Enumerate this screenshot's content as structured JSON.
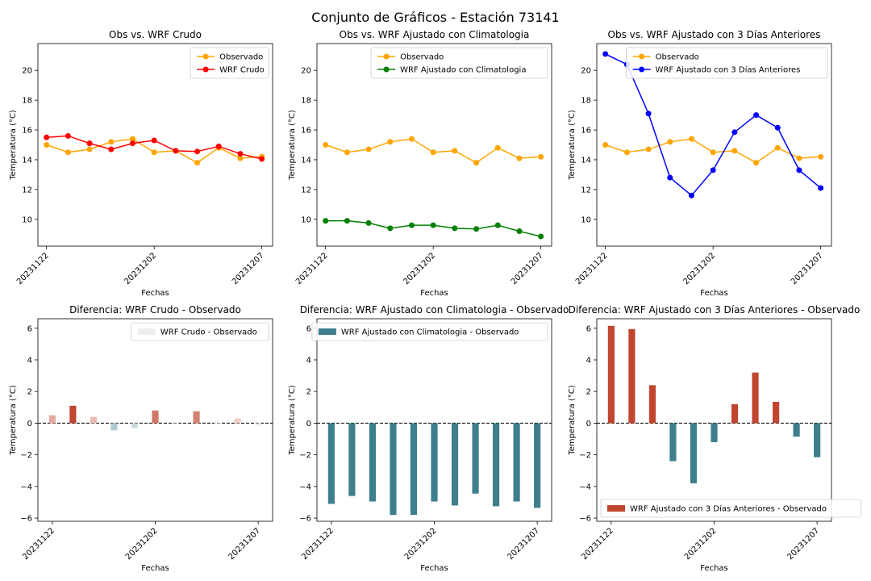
{
  "figure": {
    "title": "Conjunto de Gráficos - Estación 73141"
  },
  "colors": {
    "observado": "#FFA500",
    "wrf_crudo": "#FF0000",
    "wrf_clim": "#008000",
    "wrf_3d": "#0000FF",
    "diff_pos": "#C0462F",
    "diff_neg": "#3E7F8E",
    "zero_line": "#000000"
  },
  "chart_data": [
    {
      "type": "line",
      "title": "Obs vs. WRF Crudo",
      "xlabel": "Fechas",
      "ylabel": "Temperatura (°C)",
      "x": [
        0,
        1,
        2,
        3,
        4,
        5,
        6,
        7,
        8,
        9,
        10
      ],
      "xticks": [
        0,
        5,
        10
      ],
      "xtick_labels": [
        "20231122",
        "20231202",
        "20231207"
      ],
      "xlim": [
        -0.4,
        10.5
      ],
      "ylim": [
        8.2,
        21.8
      ],
      "yticks": [
        10,
        12,
        14,
        16,
        18,
        20
      ],
      "legend_position": "upper right",
      "series": [
        {
          "name": "Observado",
          "color_key": "observado",
          "values": [
            15.0,
            14.5,
            14.7,
            15.2,
            15.4,
            14.5,
            14.6,
            13.8,
            14.8,
            14.1,
            14.2
          ]
        },
        {
          "name": "WRF Crudo",
          "color_key": "wrf_crudo",
          "values": [
            15.5,
            15.6,
            15.1,
            14.7,
            15.1,
            15.3,
            14.6,
            14.55,
            14.9,
            14.4,
            14.05
          ]
        }
      ]
    },
    {
      "type": "line",
      "title": "Obs vs. WRF Ajustado con Climatologia",
      "xlabel": "Fechas",
      "ylabel": "Temperatura (°C)",
      "x": [
        0,
        1,
        2,
        3,
        4,
        5,
        6,
        7,
        8,
        9,
        10
      ],
      "xticks": [
        0,
        5,
        10
      ],
      "xtick_labels": [
        "20231122",
        "20231202",
        "20231207"
      ],
      "xlim": [
        -0.4,
        10.5
      ],
      "ylim": [
        8.2,
        21.8
      ],
      "yticks": [
        10,
        12,
        14,
        16,
        18,
        20
      ],
      "legend_position": "upper right",
      "series": [
        {
          "name": "Observado",
          "color_key": "observado",
          "values": [
            15.0,
            14.5,
            14.7,
            15.2,
            15.4,
            14.5,
            14.6,
            13.8,
            14.8,
            14.1,
            14.2
          ]
        },
        {
          "name": "WRF Ajustado con Climatologia",
          "color_key": "wrf_clim",
          "values": [
            9.9,
            9.9,
            9.75,
            9.4,
            9.6,
            9.6,
            9.4,
            9.35,
            9.6,
            9.2,
            8.85
          ]
        }
      ]
    },
    {
      "type": "line",
      "title": "Obs vs. WRF Ajustado con 3 Días Anteriores",
      "xlabel": "Fechas",
      "ylabel": "Temperatura (°C)",
      "x": [
        0,
        1,
        2,
        3,
        4,
        5,
        6,
        7,
        8,
        9,
        10
      ],
      "xticks": [
        0,
        5,
        10
      ],
      "xtick_labels": [
        "20231122",
        "20231202",
        "20231207"
      ],
      "xlim": [
        -0.4,
        10.5
      ],
      "ylim": [
        8.2,
        21.8
      ],
      "yticks": [
        10,
        12,
        14,
        16,
        18,
        20
      ],
      "legend_position": "upper right",
      "series": [
        {
          "name": "Observado",
          "color_key": "observado",
          "values": [
            15.0,
            14.5,
            14.7,
            15.2,
            15.4,
            14.5,
            14.6,
            13.8,
            14.8,
            14.1,
            14.2
          ]
        },
        {
          "name": "WRF Ajustado con 3 Días Anteriores",
          "color_key": "wrf_3d",
          "values": [
            21.1,
            20.4,
            17.1,
            12.8,
            11.6,
            13.3,
            15.85,
            17.0,
            16.15,
            13.3,
            12.1
          ]
        }
      ]
    },
    {
      "type": "bar",
      "title": "Diferencia: WRF Crudo - Observado",
      "xlabel": "Fechas",
      "ylabel": "Temperatura (°C)",
      "x": [
        0,
        1,
        2,
        3,
        4,
        5,
        6,
        7,
        8,
        9,
        10
      ],
      "xticks": [
        0,
        5,
        10
      ],
      "xtick_labels": [
        "20231122",
        "20231202",
        "20231207"
      ],
      "xlim": [
        -0.7,
        10.7
      ],
      "ylim": [
        -6.2,
        6.6
      ],
      "yticks": [
        -6,
        -4,
        -2,
        0,
        2,
        4,
        6
      ],
      "legend_position": "upper right",
      "bar_alpha_by_magnitude": true,
      "legend_color": "#EEEEEE",
      "series": [
        {
          "name": "WRF Crudo - Observado",
          "values": [
            0.5,
            1.1,
            0.4,
            -0.45,
            -0.3,
            0.8,
            0.0,
            0.75,
            0.1,
            0.3,
            -0.15
          ]
        }
      ]
    },
    {
      "type": "bar",
      "title": "Diferencia: WRF Ajustado con Climatologia - Observado",
      "xlabel": "Fechas",
      "ylabel": "Temperatura (°C)",
      "x": [
        0,
        1,
        2,
        3,
        4,
        5,
        6,
        7,
        8,
        9,
        10
      ],
      "xticks": [
        0,
        5,
        10
      ],
      "xtick_labels": [
        "20231122",
        "20231202",
        "20231207"
      ],
      "xlim": [
        -0.7,
        10.7
      ],
      "ylim": [
        -6.2,
        6.6
      ],
      "yticks": [
        -6,
        -4,
        -2,
        0,
        2,
        4,
        6
      ],
      "legend_position": "upper right",
      "bar_alpha_by_magnitude": false,
      "legend_color_key": "diff_neg",
      "series": [
        {
          "name": "WRF Ajustado con Climatologia - Observado",
          "values": [
            -5.1,
            -4.6,
            -4.95,
            -5.8,
            -5.8,
            -4.95,
            -5.2,
            -4.45,
            -5.25,
            -4.95,
            -5.35
          ]
        }
      ]
    },
    {
      "type": "bar",
      "title": "Diferencia: WRF Ajustado con 3 Días Anteriores - Observado",
      "xlabel": "Fechas",
      "ylabel": "Temperatura (°C)",
      "x": [
        0,
        1,
        2,
        3,
        4,
        5,
        6,
        7,
        8,
        9,
        10
      ],
      "xticks": [
        0,
        5,
        10
      ],
      "xtick_labels": [
        "20231122",
        "20231202",
        "20231207"
      ],
      "xlim": [
        -0.7,
        10.7
      ],
      "ylim": [
        -6.2,
        6.6
      ],
      "yticks": [
        -6,
        -4,
        -2,
        0,
        2,
        4,
        6
      ],
      "legend_position": "lower left",
      "bar_alpha_by_magnitude": false,
      "legend_color_key": "diff_pos",
      "series": [
        {
          "name": "WRF Ajustado con 3 Días Anteriores - Observado",
          "values": [
            6.15,
            5.95,
            2.4,
            -2.4,
            -3.8,
            -1.2,
            1.2,
            3.2,
            1.35,
            -0.85,
            -2.15
          ]
        }
      ]
    }
  ]
}
